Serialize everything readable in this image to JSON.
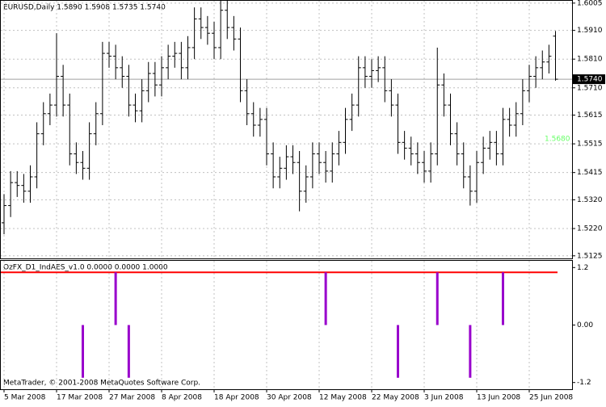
{
  "chart_data": [
    {
      "type": "ohlc",
      "title": "EURUSD,Daily  1.5890 1.5908 1.5735 1.5740",
      "color": "#000000",
      "grid": true,
      "categories": [
        "5 Mar 2008",
        null,
        null,
        null,
        null,
        null,
        null,
        null,
        "17 Mar 2008",
        null,
        null,
        null,
        null,
        null,
        null,
        null,
        "27 Mar 2008",
        null,
        null,
        null,
        null,
        null,
        null,
        null,
        "8 Apr 2008",
        null,
        null,
        null,
        null,
        null,
        null,
        null,
        "18 Apr 2008",
        null,
        null,
        null,
        null,
        null,
        null,
        null,
        "30 Apr 2008",
        null,
        null,
        null,
        null,
        null,
        null,
        null,
        "12 May 2008",
        null,
        null,
        null,
        null,
        null,
        null,
        null,
        "22 May 2008",
        null,
        null,
        null,
        null,
        null,
        null,
        null,
        "3 Jun 2008",
        null,
        null,
        null,
        null,
        null,
        null,
        null,
        "13 Jun 2008",
        null,
        null,
        null,
        null,
        null,
        null,
        null,
        "25 Jun 2008",
        null,
        null,
        null,
        null
      ],
      "open": [
        1.524,
        1.53,
        1.538,
        1.537,
        1.535,
        1.54,
        1.555,
        1.562,
        1.565,
        1.575,
        1.565,
        1.548,
        1.545,
        1.543,
        1.555,
        1.562,
        1.583,
        1.582,
        1.578,
        1.575,
        1.565,
        1.563,
        1.57,
        1.576,
        1.572,
        1.578,
        1.582,
        1.583,
        1.578,
        1.585,
        1.595,
        1.592,
        1.59,
        1.585,
        1.598,
        1.592,
        1.588,
        1.57,
        1.562,
        1.558,
        1.56,
        1.548,
        1.54,
        1.543,
        1.547,
        1.545,
        1.535,
        1.54,
        1.548,
        1.545,
        1.542,
        1.548,
        1.552,
        1.56,
        1.565,
        1.578,
        1.575,
        1.577,
        1.578,
        1.57,
        1.565,
        1.552,
        1.55,
        1.548,
        1.545,
        1.542,
        1.548,
        1.572,
        1.565,
        1.555,
        1.548,
        1.54,
        1.535,
        1.545,
        1.55,
        1.552,
        1.548,
        1.56,
        1.558,
        1.562,
        1.57,
        1.575,
        1.578,
        1.58,
        1.589
      ],
      "high": [
        1.534,
        1.542,
        1.542,
        1.541,
        1.544,
        1.559,
        1.566,
        1.569,
        1.59,
        1.579,
        1.569,
        1.552,
        1.549,
        1.559,
        1.566,
        1.587,
        1.587,
        1.586,
        1.582,
        1.579,
        1.569,
        1.574,
        1.58,
        1.58,
        1.582,
        1.586,
        1.587,
        1.587,
        1.589,
        1.599,
        1.599,
        1.596,
        1.594,
        1.602,
        1.602,
        1.596,
        1.592,
        1.574,
        1.566,
        1.564,
        1.564,
        1.552,
        1.547,
        1.551,
        1.551,
        1.549,
        1.544,
        1.552,
        1.552,
        1.549,
        1.552,
        1.556,
        1.564,
        1.569,
        1.582,
        1.582,
        1.581,
        1.582,
        1.582,
        1.574,
        1.569,
        1.556,
        1.554,
        1.552,
        1.549,
        1.552,
        1.585,
        1.576,
        1.569,
        1.559,
        1.552,
        1.544,
        1.549,
        1.554,
        1.556,
        1.556,
        1.564,
        1.564,
        1.566,
        1.574,
        1.579,
        1.582,
        1.584,
        1.586,
        1.5908
      ],
      "low": [
        1.52,
        1.526,
        1.533,
        1.531,
        1.531,
        1.536,
        1.551,
        1.558,
        1.561,
        1.561,
        1.544,
        1.541,
        1.539,
        1.539,
        1.551,
        1.558,
        1.578,
        1.574,
        1.571,
        1.561,
        1.559,
        1.559,
        1.566,
        1.568,
        1.568,
        1.574,
        1.578,
        1.574,
        1.574,
        1.581,
        1.588,
        1.586,
        1.581,
        1.581,
        1.588,
        1.584,
        1.566,
        1.558,
        1.554,
        1.554,
        1.544,
        1.536,
        1.536,
        1.539,
        1.541,
        1.528,
        1.531,
        1.536,
        1.541,
        1.538,
        1.538,
        1.544,
        1.548,
        1.556,
        1.561,
        1.571,
        1.571,
        1.573,
        1.566,
        1.561,
        1.548,
        1.546,
        1.544,
        1.541,
        1.538,
        1.538,
        1.544,
        1.561,
        1.551,
        1.544,
        1.536,
        1.53,
        1.531,
        1.541,
        1.546,
        1.544,
        1.544,
        1.554,
        1.554,
        1.558,
        1.566,
        1.571,
        1.574,
        1.576,
        1.5735
      ],
      "close": [
        1.53,
        1.538,
        1.537,
        1.535,
        1.54,
        1.555,
        1.562,
        1.565,
        1.575,
        1.565,
        1.548,
        1.545,
        1.543,
        1.555,
        1.562,
        1.583,
        1.582,
        1.578,
        1.575,
        1.565,
        1.563,
        1.57,
        1.576,
        1.572,
        1.578,
        1.582,
        1.583,
        1.578,
        1.585,
        1.595,
        1.592,
        1.59,
        1.585,
        1.598,
        1.592,
        1.588,
        1.57,
        1.562,
        1.558,
        1.56,
        1.548,
        1.54,
        1.543,
        1.547,
        1.545,
        1.535,
        1.54,
        1.548,
        1.545,
        1.542,
        1.548,
        1.552,
        1.56,
        1.565,
        1.578,
        1.575,
        1.577,
        1.578,
        1.57,
        1.565,
        1.552,
        1.55,
        1.548,
        1.545,
        1.542,
        1.548,
        1.572,
        1.565,
        1.555,
        1.548,
        1.54,
        1.535,
        1.545,
        1.55,
        1.552,
        1.548,
        1.56,
        1.558,
        1.562,
        1.57,
        1.575,
        1.578,
        1.58,
        1.582,
        1.574
      ],
      "close_label": "1.5740",
      "annotation": "1.5680",
      "ylim": [
        1.5116,
        1.6013
      ],
      "yticks": [
        1.6005,
        {
          "value": 1.591,
          "label": "1.5910"
        },
        {
          "value": 1.581,
          "label": "1.5810"
        },
        {
          "value": 1.571,
          "label": "1.5710"
        },
        1.5615,
        1.5515,
        1.5415,
        {
          "value": 1.532,
          "label": "1.5320"
        },
        {
          "value": 1.522,
          "label": "1.5220"
        },
        1.5125
      ]
    },
    {
      "type": "bar",
      "title": "OzFX_D1_IndAES_v1.0 0.0000 0.0000 1.0000",
      "color": "#9900cc",
      "values": [
        0,
        0,
        0,
        0,
        0,
        0,
        0,
        0,
        0,
        0,
        0,
        0,
        -1.1,
        0,
        0,
        0,
        0,
        1.1,
        0,
        -1.1,
        0,
        0,
        0,
        0,
        0,
        0,
        0,
        0,
        0,
        0,
        0,
        0,
        0,
        0,
        0,
        0,
        0,
        0,
        0,
        0,
        0,
        0,
        0,
        0,
        0,
        0,
        0,
        0,
        0,
        1.1,
        0,
        0,
        0,
        0,
        0,
        0,
        0,
        0,
        0,
        0,
        -1.1,
        0,
        0,
        0,
        0,
        0,
        1.1,
        0,
        0,
        0,
        0,
        -1.1,
        0,
        0,
        0,
        0,
        1.1,
        0,
        0,
        0,
        0,
        0,
        0,
        0,
        0
      ],
      "level": 1.1,
      "level_color": "#ff0000",
      "ylim": [
        -1.34,
        1.34
      ],
      "yticks": [
        1.2,
        {
          "value": 0,
          "label": "0.00"
        },
        -1.2
      ]
    }
  ],
  "footer": "MetaTrader, © 2001-2008 MetaQuotes Software Corp."
}
